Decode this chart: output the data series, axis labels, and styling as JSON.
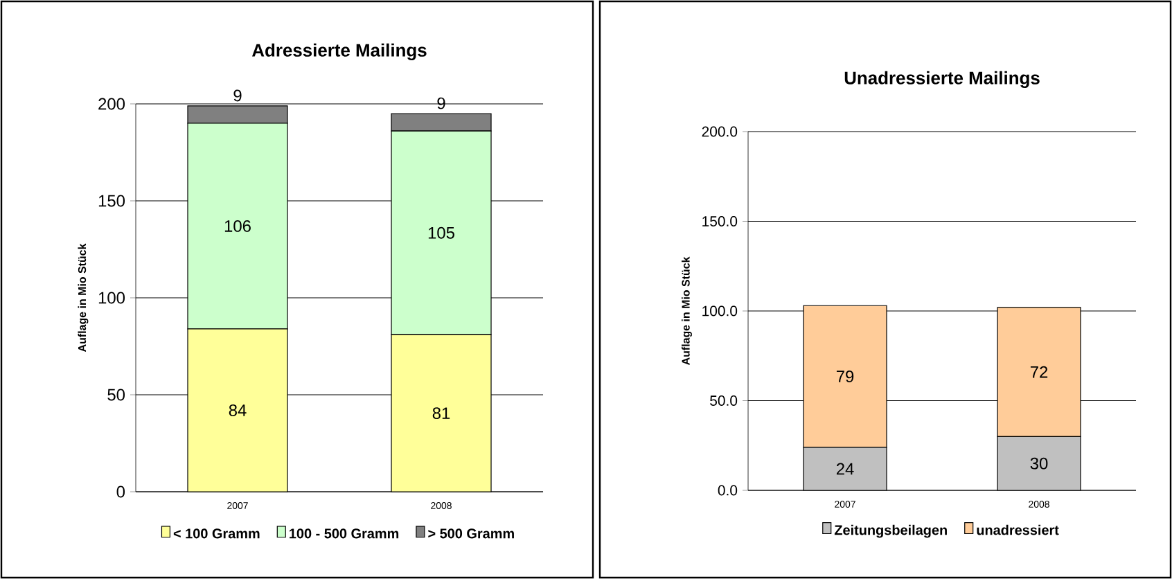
{
  "chart_data": [
    {
      "type": "bar",
      "title": "Adressierte Mailings",
      "ylabel": "Auflage in Mio Stück",
      "categories": [
        "2007",
        "2008"
      ],
      "stacked": true,
      "series": [
        {
          "name": "< 100 Gramm",
          "color": "#ffff99",
          "values": [
            84,
            81
          ]
        },
        {
          "name": "100 -  500 Gramm",
          "color": "#ccffcc",
          "values": [
            106,
            105
          ]
        },
        {
          "name": "> 500 Gramm",
          "color": "#808080",
          "values": [
            9,
            9
          ]
        }
      ],
      "ylim": [
        0,
        200
      ],
      "yticks": [
        0,
        50,
        100,
        150,
        200
      ],
      "grid": "y",
      "legend": "bottom",
      "data_labels": true
    },
    {
      "type": "bar",
      "title": "Unadressierte Mailings",
      "ylabel": "Auflage in Mio Stück",
      "categories": [
        "2007",
        "2008"
      ],
      "stacked": true,
      "series": [
        {
          "name": "Zeitungsbeilagen",
          "color": "#c0c0c0",
          "values": [
            24,
            30
          ]
        },
        {
          "name": "unadressiert",
          "color": "#ffcc99",
          "values": [
            79,
            72
          ]
        }
      ],
      "ylim": [
        0,
        200
      ],
      "yticks": [
        {
          "value": 0,
          "label": "0.0"
        },
        {
          "value": 50,
          "label": "50.0"
        },
        {
          "value": 100,
          "label": "100.0"
        },
        {
          "value": 150,
          "label": "150.0"
        },
        {
          "value": 200,
          "label": "200.0"
        }
      ],
      "grid": "y",
      "legend": "bottom",
      "data_labels": true
    }
  ]
}
